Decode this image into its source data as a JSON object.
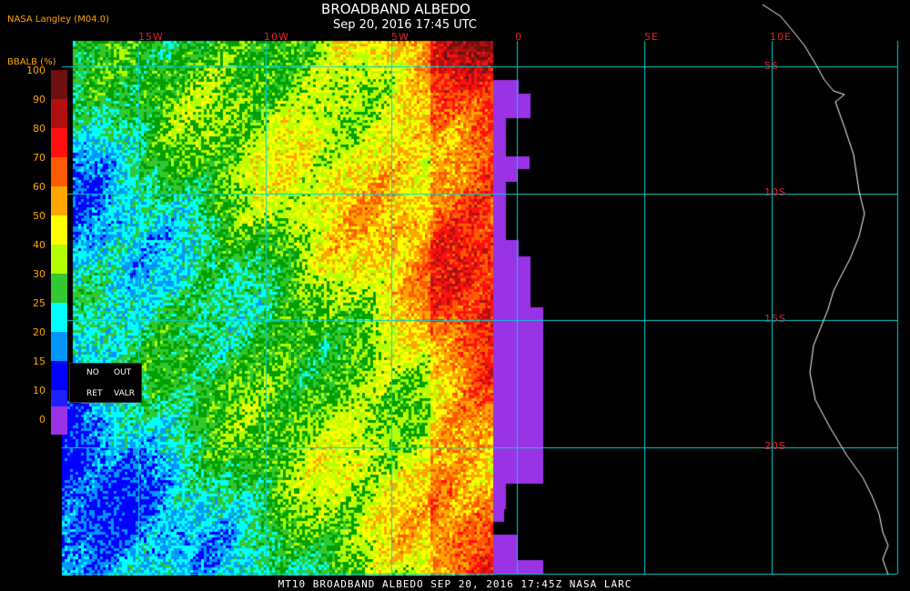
{
  "header": {
    "title": "BROADBAND ALBEDO",
    "subtitle": "Sep 20, 2016 17:45 UTC",
    "producer": "NASA Langley (M04.0)"
  },
  "colorbar": {
    "title": "BBALB (%)",
    "ticks": [
      "100",
      "90",
      "80",
      "70",
      "60",
      "50",
      "40",
      "30",
      "25",
      "20",
      "15",
      "10",
      "0"
    ],
    "colors": [
      "#6e0f10",
      "#b01010",
      "#ff1010",
      "#ff5a00",
      "#ffa500",
      "#ffff00",
      "#b4ff00",
      "#32c832",
      "#00ffff",
      "#0096ff",
      "#0000ff",
      "#1e1eff",
      "#9a32e6"
    ],
    "special": {
      "no_ret": "NO\nRET",
      "out_valr": "OUT\nVALR",
      "no": "NO",
      "ret": "RET",
      "out": "OUT",
      "valr": "VALR"
    }
  },
  "grid": {
    "lon_labels": [
      "15W",
      "10W",
      "5W",
      "0",
      "5E",
      "10E"
    ],
    "lat_labels": [
      "5S",
      "10S",
      "15S",
      "20S"
    ],
    "line_color": "#00d2d2",
    "label_color": "#e8202a"
  },
  "footer": {
    "text": "MT10   BROADBAND ALBEDO   SEP 20, 2016 17:45Z   NASA LARC"
  }
}
